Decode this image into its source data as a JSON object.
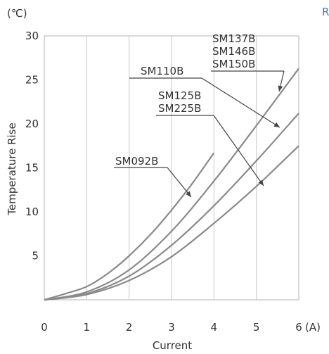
{
  "corner_label": "R",
  "chart_data": {
    "type": "line",
    "title": "",
    "xlabel": "Current",
    "ylabel": "Temperature Rise",
    "x_unit": "(A)",
    "y_unit": "(℃)",
    "xlim": [
      0,
      6
    ],
    "ylim": [
      0,
      30
    ],
    "x_ticks": [
      0,
      1,
      2,
      3,
      4,
      5,
      6
    ],
    "y_ticks": [
      5,
      10,
      15,
      20,
      25,
      30
    ],
    "x_tick_labels": [
      "0",
      "1",
      "2",
      "3",
      "4",
      "5",
      "6"
    ],
    "y_tick_labels": [
      "5",
      "10",
      "15",
      "20",
      "25",
      "30"
    ],
    "grid": "vertical lines at each x tick",
    "legend": "none; curves labeled with leader lines",
    "colors": {
      "curve": "#8a8a8a",
      "grid": "#c8c8c8",
      "leader": "#444444",
      "corner_label": "#3a7bbf"
    },
    "series": [
      {
        "labels": [
          "SM092B"
        ],
        "x": [
          0,
          0.5,
          1,
          1.5,
          2,
          2.5,
          3,
          3.5,
          4
        ],
        "y": [
          0,
          0.7,
          1.5,
          3.0,
          5.0,
          7.4,
          10.2,
          13.3,
          16.7
        ]
      },
      {
        "labels": [
          "SM137B",
          "SM146B",
          "SM150B"
        ],
        "x": [
          0,
          1,
          2,
          3,
          4,
          5,
          6
        ],
        "y": [
          0,
          0.9,
          3.4,
          7.8,
          13.5,
          19.8,
          26.3
        ]
      },
      {
        "labels": [
          "SM110B"
        ],
        "x": [
          0,
          1,
          2,
          3,
          4,
          5,
          6
        ],
        "y": [
          0,
          0.7,
          2.7,
          6.2,
          10.7,
          15.8,
          21.2
        ]
      },
      {
        "labels": [
          "SM125B",
          "SM225B"
        ],
        "x": [
          0,
          1,
          2,
          3,
          4,
          5,
          6
        ],
        "y": [
          0,
          0.6,
          2.2,
          4.9,
          8.7,
          12.9,
          17.5
        ]
      }
    ]
  }
}
